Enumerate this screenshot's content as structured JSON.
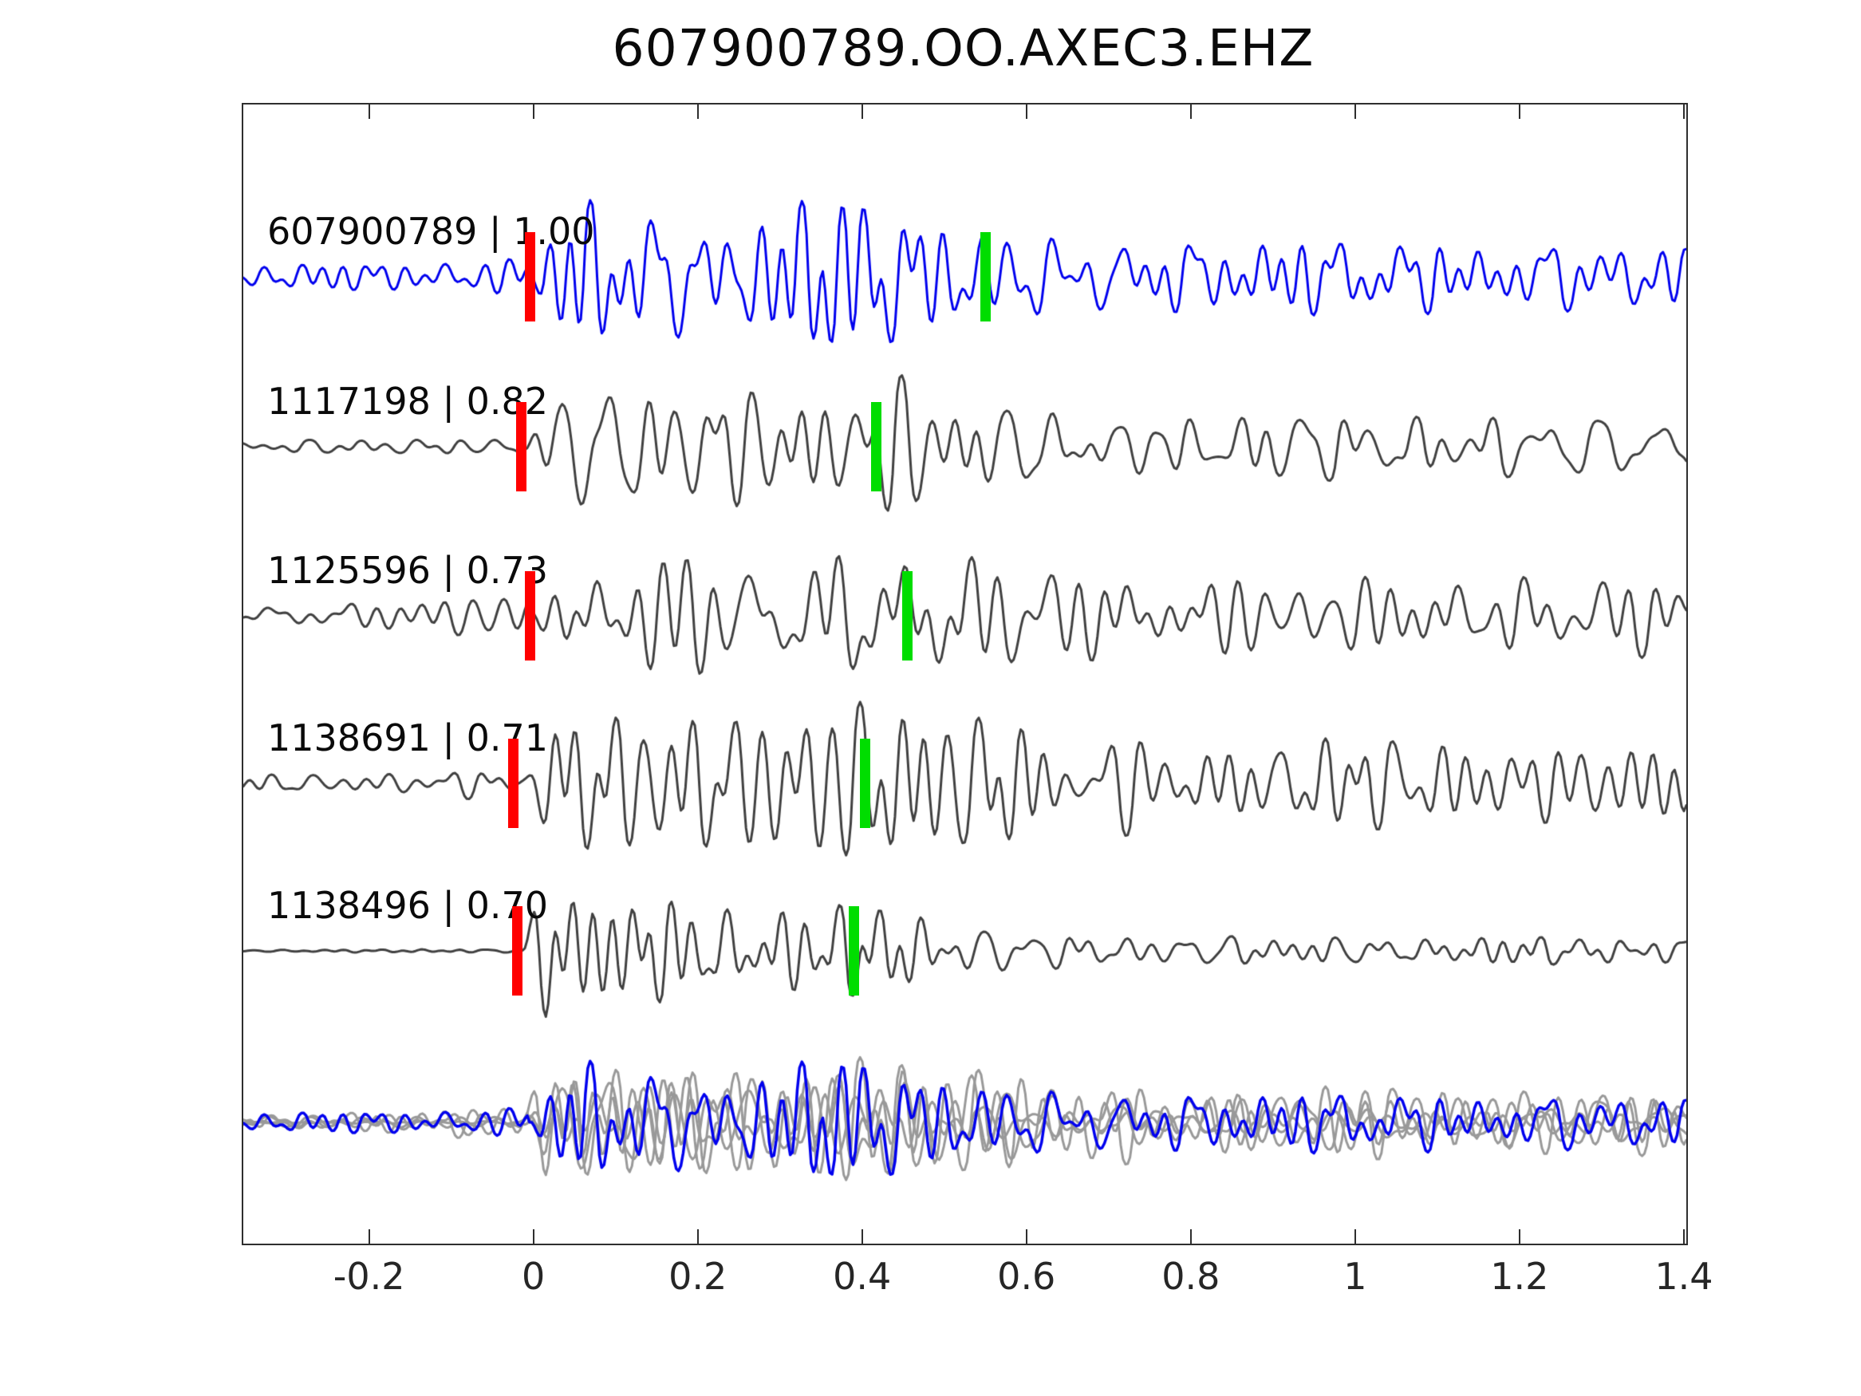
{
  "figure": {
    "title": "607900789.OO.AXEC3.EHZ"
  },
  "chart_data": {
    "type": "line",
    "title": "607900789.OO.AXEC3.EHZ",
    "subtitle": "",
    "xlabel": "",
    "ylabel": "",
    "xlim": [
      -0.35,
      1.4
    ],
    "x_ticks": [
      -0.2,
      0,
      0.2,
      0.4,
      0.6,
      0.8,
      1,
      1.2,
      1.4
    ],
    "x_tick_labels": [
      "-0.2",
      "0",
      "0.2",
      "0.4",
      "0.6",
      "0.8",
      "1",
      "1.2",
      "1.4"
    ],
    "grid": false,
    "legend_position": "none",
    "colors": {
      "template_trace": "#0000ee",
      "detection_trace": "#404040",
      "overlay_gray": "#999999",
      "pick_red": "#ff0000",
      "pick_green": "#00dd00",
      "axis": "#2e2e2e",
      "text": "#0a0a0a"
    },
    "traces": [
      {
        "id": "607900789",
        "label": "607900789 | 1.00",
        "cross_correlation": 1.0,
        "is_template": true,
        "color": "#0000ee",
        "red_pick_t": -0.005,
        "green_pick_t": 0.55,
        "waveform_style": {
          "seed": 101,
          "pre_noise": 0.33,
          "attack": 0.05,
          "decay": 0.5,
          "tail": 0.4,
          "bump": 0.25,
          "amp": 1.0
        }
      },
      {
        "id": "1117198",
        "label": "1117198 | 0.82",
        "cross_correlation": 0.82,
        "is_template": false,
        "color": "#404040",
        "red_pick_t": -0.015,
        "green_pick_t": 0.417,
        "waveform_style": {
          "seed": 202,
          "pre_noise": 0.16,
          "attack": 0.05,
          "decay": 0.45,
          "tail": 0.34,
          "bump": 0.32,
          "amp": 1.0
        }
      },
      {
        "id": "1125596",
        "label": "1125596 | 0.73",
        "cross_correlation": 0.73,
        "is_template": false,
        "color": "#404040",
        "red_pick_t": -0.005,
        "green_pick_t": 0.455,
        "waveform_style": {
          "seed": 303,
          "pre_noise": 0.36,
          "attack": 0.05,
          "decay": 0.6,
          "tail": 0.5,
          "bump": 0.28,
          "amp": 0.95
        }
      },
      {
        "id": "1138691",
        "label": "1138691 | 0.71",
        "cross_correlation": 0.71,
        "is_template": false,
        "color": "#404040",
        "red_pick_t": -0.025,
        "green_pick_t": 0.403,
        "waveform_style": {
          "seed": 404,
          "pre_noise": 0.22,
          "attack": 0.05,
          "decay": 0.6,
          "tail": 0.52,
          "bump": 0.3,
          "amp": 0.97
        }
      },
      {
        "id": "1138496",
        "label": "1138496 | 0.70",
        "cross_correlation": 0.7,
        "is_template": false,
        "color": "#404040",
        "red_pick_t": -0.02,
        "green_pick_t": 0.39,
        "waveform_style": {
          "seed": 505,
          "pre_noise": 0.03,
          "attack": 0.035,
          "decay": 0.28,
          "tail": 0.16,
          "bump": 0.22,
          "amp": 1.0
        }
      }
    ],
    "overlay_row": {
      "description": "all detections overlaid in gray with template in blue, aligned at onset",
      "gray_member_ids": [
        "1117198",
        "1125596",
        "1138691",
        "1138496"
      ],
      "template_id": "607900789",
      "amp_scale": 0.8
    }
  }
}
